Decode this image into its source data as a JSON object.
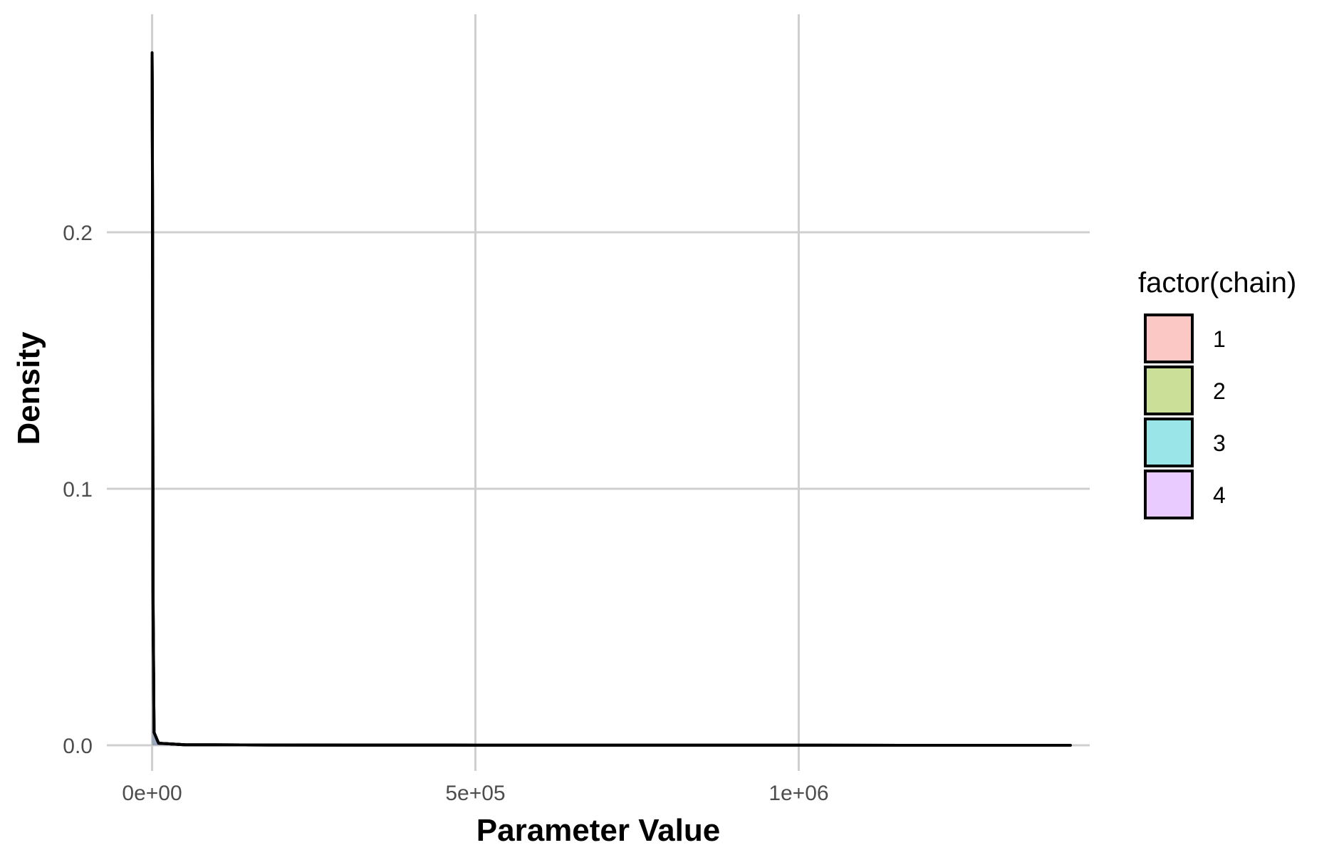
{
  "chart_data": {
    "type": "area",
    "title": "",
    "xlabel": "Parameter Value",
    "ylabel": "Density",
    "xlim": [
      -70000,
      1450000
    ],
    "ylim": [
      -0.01,
      0.285
    ],
    "grid": true,
    "legend_placement": "right",
    "legend_title": "factor(chain)",
    "x_ticks": [
      {
        "value": 0,
        "label": "0e+00"
      },
      {
        "value": 500000,
        "label": "5e+05"
      },
      {
        "value": 1000000,
        "label": "1e+06"
      }
    ],
    "y_ticks": [
      {
        "value": 0.0,
        "label": "0.0"
      },
      {
        "value": 0.1,
        "label": "0.1"
      },
      {
        "value": 0.2,
        "label": "0.2"
      }
    ],
    "series": [
      {
        "name": "1",
        "color": "#F8766D",
        "x": [
          0,
          200,
          600,
          1500,
          3000,
          10000,
          50000,
          200000,
          500000,
          1000000,
          1420000
        ],
        "y": [
          0.27,
          0.26,
          0.22,
          0.06,
          0.005,
          0.0008,
          0.0002,
          0.0001,
          5e-05,
          2e-05,
          0.0
        ]
      },
      {
        "name": "2",
        "color": "#7CAE00",
        "x": [
          0,
          200,
          600,
          1500,
          3000,
          10000,
          50000,
          200000,
          500000,
          1000000,
          1420000
        ],
        "y": [
          0.265,
          0.255,
          0.215,
          0.055,
          0.005,
          0.0008,
          0.0002,
          0.0001,
          5e-05,
          2e-05,
          0.0
        ]
      },
      {
        "name": "3",
        "color": "#00BFC4",
        "x": [
          0,
          200,
          600,
          1500,
          3000,
          10000,
          50000,
          200000,
          500000,
          1000000,
          1420000
        ],
        "y": [
          0.268,
          0.258,
          0.218,
          0.058,
          0.005,
          0.0008,
          0.0002,
          0.0001,
          5e-05,
          2e-05,
          0.0
        ]
      },
      {
        "name": "4",
        "color": "#C77CFF",
        "x": [
          0,
          200,
          600,
          1500,
          3000,
          10000,
          50000,
          200000,
          500000,
          1000000,
          1420000
        ],
        "y": [
          0.262,
          0.25,
          0.21,
          0.05,
          0.005,
          0.0008,
          0.0002,
          0.0001,
          5e-05,
          2e-05,
          0.0
        ]
      }
    ]
  }
}
